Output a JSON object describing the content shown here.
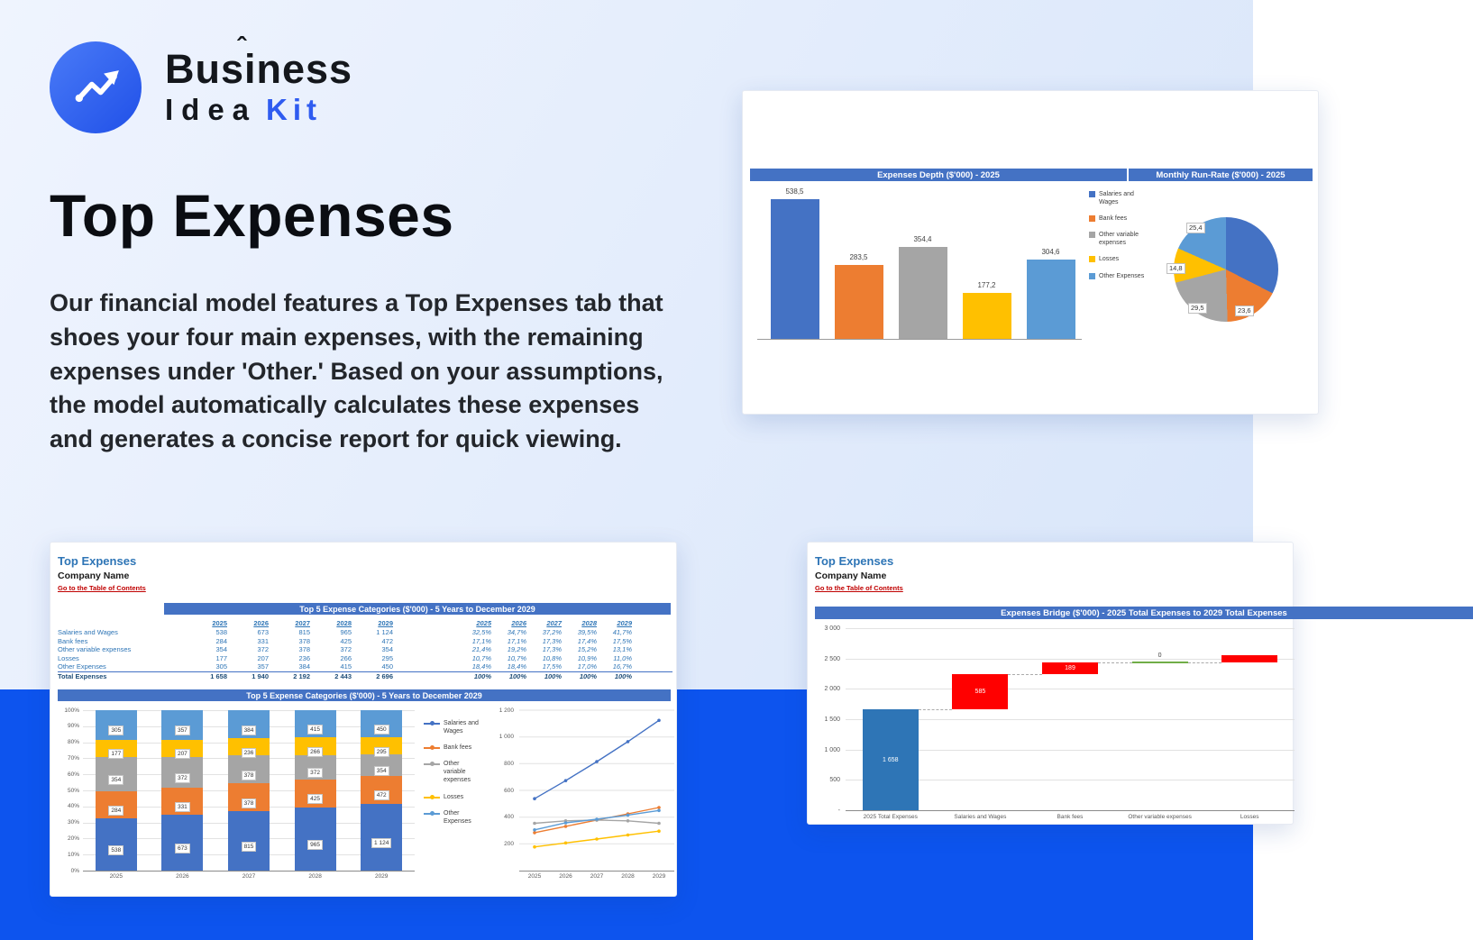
{
  "logo": {
    "word1": "Business",
    "caret": "ˆ",
    "word2": "Idea",
    "word3": "Kit"
  },
  "hero": {
    "title": "Top Expenses",
    "description": "Our financial model features a Top Expenses tab that shoes your four main expenses, with the remaining expenses under 'Other.' Based on your assumptions, the model automatically calculates these expenses and generates a concise report for quick viewing."
  },
  "palette": {
    "header_bar": "#4472C4",
    "band_blue": "#0D54EE",
    "logo_accent": "#2F5CF0",
    "link_red": "#C00000",
    "sheet_blue": "#2E75B6",
    "bridge_base": "#2E75B6",
    "bridge_increase": "#FF0000",
    "bridge_zero": "#70AD47"
  },
  "series": [
    {
      "name": "Salaries and Wages",
      "color": "#4472C4"
    },
    {
      "name": "Bank fees",
      "color": "#ED7D31"
    },
    {
      "name": "Other variable expenses",
      "color": "#A5A5A5"
    },
    {
      "name": "Losses",
      "color": "#FFC000"
    },
    {
      "name": "Other Expenses",
      "color": "#5B9BD5"
    }
  ],
  "depth_card": {
    "header_left": "Expenses Depth ($'000) - 2025",
    "header_right": "Monthly Run-Rate ($'000) - 2025",
    "bar_chart": {
      "type": "bar",
      "categories": [
        "Salaries and Wages",
        "Bank fees",
        "Other variable expenses",
        "Losses",
        "Other Expenses"
      ],
      "values": [
        538.5,
        283.5,
        354.4,
        177.2,
        304.6
      ],
      "labels": [
        "538,5",
        "283,5",
        "354,4",
        "177,2",
        "304,6"
      ],
      "ylim": [
        0,
        600
      ]
    },
    "pie_chart": {
      "type": "pie",
      "slices": [
        "Salaries and Wages",
        "Bank fees",
        "Other variable expenses",
        "Losses",
        "Other Expenses"
      ],
      "values": [
        44.9,
        23.6,
        29.5,
        14.8,
        25.4
      ],
      "visible_labels": [
        "25,4",
        "14,8",
        "29,5",
        "23,6"
      ]
    }
  },
  "sheet_card": {
    "title": "Top Expenses",
    "company": "Company Name",
    "toc_link": "Go to the Table of Contents",
    "table_header": "Top 5 Expense Categories ($'000) - 5 Years to December 2029",
    "chart_header": "Top 5 Expense Categories ($'000) - 5 Years to December 2029",
    "years": [
      "2025",
      "2026",
      "2027",
      "2028",
      "2029"
    ],
    "rows": [
      {
        "label": "Salaries and Wages",
        "values": [
          "538",
          "673",
          "815",
          "965",
          "1 124"
        ],
        "pcts": [
          "32,5%",
          "34,7%",
          "37,2%",
          "39,5%",
          "41,7%"
        ]
      },
      {
        "label": "Bank fees",
        "values": [
          "284",
          "331",
          "378",
          "425",
          "472"
        ],
        "pcts": [
          "17,1%",
          "17,1%",
          "17,3%",
          "17,4%",
          "17,5%"
        ]
      },
      {
        "label": "Other variable expenses",
        "values": [
          "354",
          "372",
          "378",
          "372",
          "354"
        ],
        "pcts": [
          "21,4%",
          "19,2%",
          "17,3%",
          "15,2%",
          "13,1%"
        ]
      },
      {
        "label": "Losses",
        "values": [
          "177",
          "207",
          "236",
          "266",
          "295"
        ],
        "pcts": [
          "10,7%",
          "10,7%",
          "10,8%",
          "10,9%",
          "11,0%"
        ]
      },
      {
        "label": "Other Expenses",
        "values": [
          "305",
          "357",
          "384",
          "415",
          "450"
        ],
        "pcts": [
          "18,4%",
          "18,4%",
          "17,5%",
          "17,0%",
          "16,7%"
        ]
      }
    ],
    "total_row": {
      "label": "Total Expenses",
      "values": [
        "1 658",
        "1 940",
        "2 192",
        "2 443",
        "2 696"
      ],
      "pcts": [
        "100%",
        "100%",
        "100%",
        "100%",
        "100%"
      ]
    },
    "stacked_chart": {
      "type": "bar",
      "stacked": true,
      "percent": true,
      "categories": [
        "2025",
        "2026",
        "2027",
        "2028",
        "2029"
      ],
      "series": [
        {
          "name": "Salaries and Wages",
          "values": [
            538,
            673,
            815,
            965,
            1124
          ],
          "labels": [
            "538",
            "673",
            "815",
            "965",
            "1 124"
          ]
        },
        {
          "name": "Bank fees",
          "values": [
            284,
            331,
            378,
            425,
            472
          ],
          "labels": [
            "284",
            "331",
            "378",
            "425",
            "472"
          ]
        },
        {
          "name": "Other variable expenses",
          "values": [
            354,
            372,
            378,
            372,
            354
          ],
          "labels": [
            "354",
            "372",
            "378",
            "372",
            "354"
          ]
        },
        {
          "name": "Losses",
          "values": [
            177,
            207,
            236,
            266,
            295
          ],
          "labels": [
            "177",
            "207",
            "236",
            "266",
            "295"
          ]
        },
        {
          "name": "Other Expenses",
          "values": [
            305,
            357,
            384,
            415,
            450
          ],
          "labels": [
            "305",
            "357",
            "384",
            "415",
            "450"
          ]
        }
      ],
      "totals": [
        1658,
        1940,
        2192,
        2443,
        2696
      ],
      "y_ticks": [
        "100%",
        "90%",
        "80%",
        "70%",
        "60%",
        "50%",
        "40%",
        "30%",
        "20%",
        "10%",
        "0%"
      ]
    },
    "line_chart": {
      "type": "line",
      "x": [
        "2025",
        "2026",
        "2027",
        "2028",
        "2029"
      ],
      "ylim": [
        0,
        1200
      ],
      "y_ticks": [
        "1 200",
        "1 000",
        "800",
        "600",
        "400",
        "200"
      ]
    }
  },
  "bridge_card": {
    "title": "Top Expenses",
    "company": "Company Name",
    "toc_link": "Go to the Table of Contents",
    "header": "Expenses Bridge ($'000) - 2025 Total Expenses to 2029 Total Expenses",
    "waterfall": {
      "type": "waterfall",
      "ylim": [
        0,
        3000
      ],
      "y_ticks": [
        "3 000",
        "2 500",
        "2 000",
        "1 500",
        "1 000",
        "500",
        "-"
      ],
      "categories": [
        "2025 Total Expenses",
        "Salaries and Wages",
        "Bank fees",
        "Other variable expenses",
        "Losses"
      ],
      "steps": [
        {
          "category": "2025 Total Expenses",
          "start": 0,
          "end": 1658,
          "label": "1 658",
          "kind": "base"
        },
        {
          "category": "Salaries and Wages",
          "start": 1658,
          "end": 2243,
          "label": "585",
          "kind": "increase"
        },
        {
          "category": "Bank fees",
          "start": 2243,
          "end": 2432,
          "label": "189",
          "kind": "increase"
        },
        {
          "category": "Other variable expenses",
          "start": 2432,
          "end": 2432,
          "label": "0",
          "kind": "zero"
        },
        {
          "category": "Losses",
          "start": 2432,
          "end": 2550,
          "label": "",
          "kind": "increase"
        }
      ]
    }
  }
}
